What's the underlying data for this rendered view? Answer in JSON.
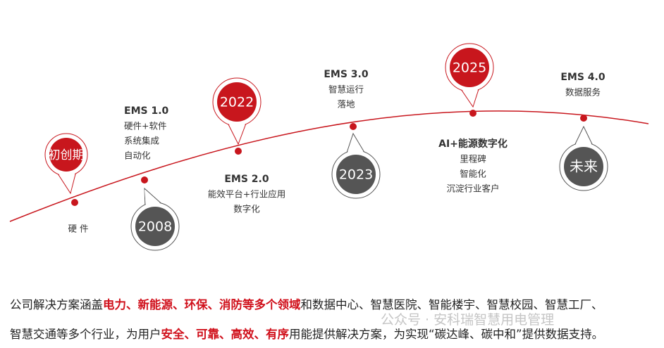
{
  "nodes": [
    {
      "pin": "初创期",
      "title": null,
      "lines": [
        "硬 件"
      ]
    },
    {
      "pin": "2008",
      "title": "EMS 1.0",
      "lines": [
        "硬件+软件",
        "系统集成",
        "自动化"
      ]
    },
    {
      "pin": "2022",
      "title": "EMS 2.0",
      "lines": [
        "能效平台+行业应用",
        "数字化"
      ]
    },
    {
      "pin": "2023",
      "title": "EMS 3.0",
      "lines": [
        "智慧运行",
        "落地"
      ]
    },
    {
      "pin": "2025",
      "title": "AI+能源数字化",
      "lines": [
        "里程碑",
        "智能化",
        "沉淀行业客户"
      ]
    },
    {
      "pin": "未来",
      "title": "EMS 4.0",
      "lines": [
        "数据服务"
      ]
    }
  ],
  "paragraph": [
    [
      {
        "text": "公司解决方案涵盖",
        "emphasis": false
      },
      {
        "text": "电力、新能源、环保、消防等多个领域",
        "emphasis": true
      },
      {
        "text": "和数据中心、智慧医院、智能楼宇、智慧校园、智慧工厂、",
        "emphasis": false
      }
    ],
    [
      {
        "text": "智慧交通等多个行业，为用户",
        "emphasis": false
      },
      {
        "text": "安全、可靠、高效、有序",
        "emphasis": true
      },
      {
        "text": "用能提供解决方案，为实现“碳达峰、碳中和”提供数据支持。",
        "emphasis": false
      }
    ]
  ],
  "watermark": "公众号 · 安科瑞智慧用电管理"
}
